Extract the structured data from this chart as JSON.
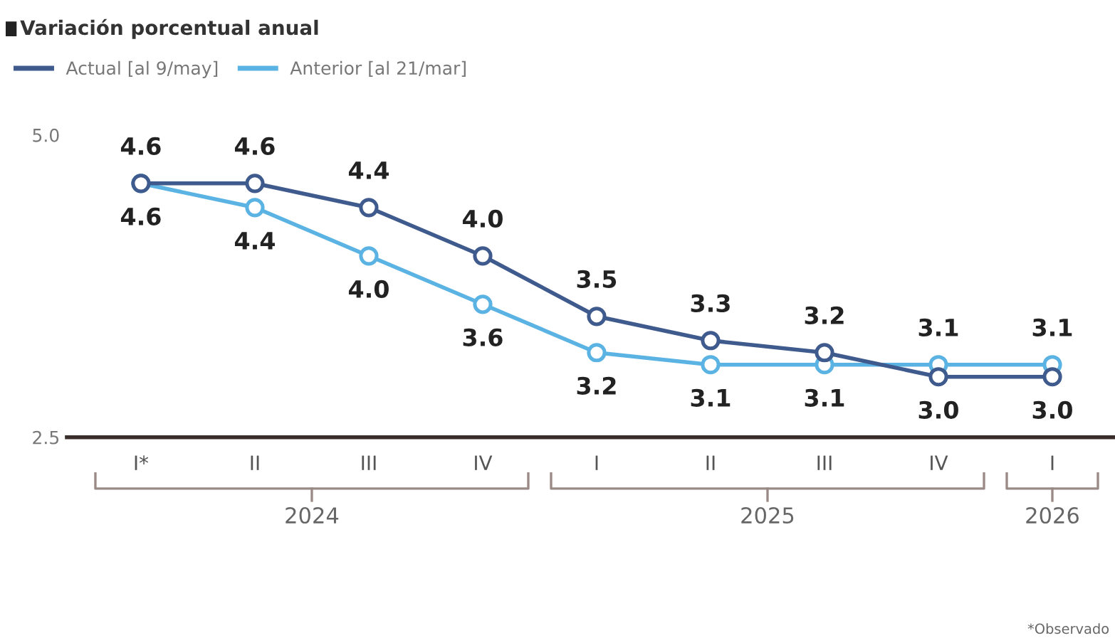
{
  "chart_data": {
    "type": "line",
    "title": "Variación porcentual anual",
    "categories": [
      "I*",
      "II",
      "III",
      "IV",
      "I",
      "II",
      "III",
      "IV",
      "I"
    ],
    "series": [
      {
        "name": "Actual [al 9/may]",
        "color": "#3f5a8c",
        "values": [
          4.6,
          4.6,
          4.4,
          4.0,
          3.5,
          3.3,
          3.2,
          3.0,
          3.0
        ],
        "value_labels": [
          "4.6",
          "4.6",
          "4.4",
          "4.0",
          "3.5",
          "3.3",
          "3.2",
          "3.0",
          "3.0"
        ]
      },
      {
        "name": "Anterior [al 21/mar]",
        "color": "#5bb3e3",
        "values": [
          4.6,
          4.4,
          4.0,
          3.6,
          3.2,
          3.1,
          3.1,
          3.1,
          3.1
        ],
        "value_labels": [
          "4.6",
          "4.4",
          "4.0",
          "3.6",
          "3.2",
          "3.1",
          "3.1",
          "3.1",
          "3.1"
        ]
      }
    ],
    "ylim": [
      2.5,
      5.0
    ],
    "yticks": [
      {
        "value": 2.5,
        "label": "2.5"
      },
      {
        "value": 5.0,
        "label": "5.0"
      }
    ],
    "grid": false,
    "legend": "top left",
    "marker": "circle",
    "line_style": "solid",
    "annotations": [
      "2024",
      "2025",
      "2026",
      "*Observado"
    ]
  }
}
